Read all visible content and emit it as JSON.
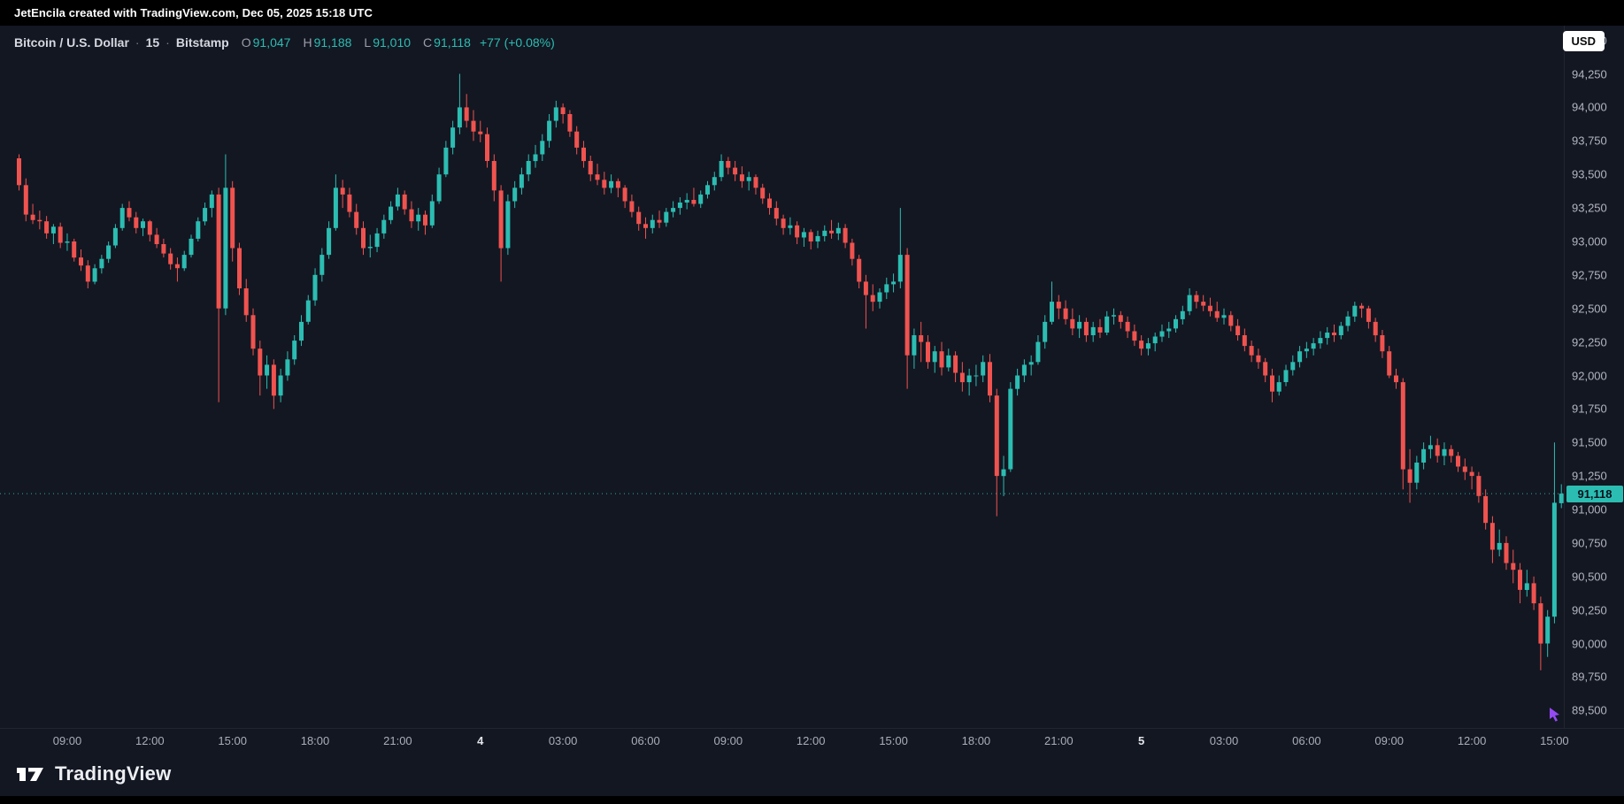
{
  "topbar": {
    "attribution": "JetEncila created with TradingView.com, Dec 05, 2025 15:18 UTC"
  },
  "legend": {
    "symbol": "Bitcoin / U.S. Dollar",
    "separator": "·",
    "interval": "15",
    "exchange": "Bitstamp",
    "open_label": "O",
    "open": "91,047",
    "high_label": "H",
    "high": "91,188",
    "low_label": "L",
    "low": "91,010",
    "close_label": "C",
    "close": "91,118",
    "change": "+77 (+0.08%)"
  },
  "currency_button": "USD",
  "footer": {
    "brand": "TradingView"
  },
  "colors": {
    "up": "#2cbdb2",
    "down": "#f0534f",
    "background": "#131722",
    "topbar": "#000000",
    "axis_text": "#b2b5be",
    "badge_bg": "#2cbdb2",
    "badge_text": "#06121d",
    "cursor_purple": "#9b4dff"
  },
  "chart_data": {
    "type": "candlestick",
    "title": "Bitcoin / U.S. Dollar",
    "exchange": "Bitstamp",
    "interval": "15m",
    "timezone": "UTC",
    "start": "2025-12-03 07:15",
    "end": "2025-12-05 15:15",
    "interval_minutes": 15,
    "last": {
      "open": 91047,
      "high": 91188,
      "low": 91010,
      "close": 91118,
      "change": 77,
      "change_pct": 0.08
    },
    "last_price": 91118,
    "price_min": 89370,
    "price_max": 94610,
    "y_ticks": [
      94500,
      94250,
      94000,
      93750,
      93500,
      93250,
      93000,
      92750,
      92500,
      92250,
      92000,
      91750,
      91500,
      91250,
      91000,
      90750,
      90500,
      90250,
      90000,
      89750,
      89500
    ],
    "x_ticks": [
      {
        "label": "09:00",
        "i": 7
      },
      {
        "label": "12:00",
        "i": 19
      },
      {
        "label": "15:00",
        "i": 31
      },
      {
        "label": "18:00",
        "i": 43
      },
      {
        "label": "21:00",
        "i": 55
      },
      {
        "label": "4",
        "i": 67,
        "day": true
      },
      {
        "label": "03:00",
        "i": 79
      },
      {
        "label": "06:00",
        "i": 91
      },
      {
        "label": "09:00",
        "i": 103
      },
      {
        "label": "12:00",
        "i": 115
      },
      {
        "label": "15:00",
        "i": 127
      },
      {
        "label": "18:00",
        "i": 139
      },
      {
        "label": "21:00",
        "i": 151
      },
      {
        "label": "5",
        "i": 163,
        "day": true
      },
      {
        "label": "03:00",
        "i": 175
      },
      {
        "label": "06:00",
        "i": 187
      },
      {
        "label": "09:00",
        "i": 199
      },
      {
        "label": "12:00",
        "i": 211
      },
      {
        "label": "15:00",
        "i": 223
      }
    ],
    "candles": [
      [
        93620,
        93650,
        93380,
        93420
      ],
      [
        93420,
        93470,
        93150,
        93200
      ],
      [
        93200,
        93280,
        93130,
        93160
      ],
      [
        93160,
        93230,
        93090,
        93150
      ],
      [
        93150,
        93190,
        93020,
        93060
      ],
      [
        93060,
        93130,
        92980,
        93110
      ],
      [
        93110,
        93140,
        92950,
        92990
      ],
      [
        92990,
        93060,
        92930,
        93000
      ],
      [
        93000,
        93020,
        92850,
        92880
      ],
      [
        92880,
        92940,
        92780,
        92820
      ],
      [
        92820,
        92860,
        92650,
        92700
      ],
      [
        92700,
        92830,
        92680,
        92800
      ],
      [
        92800,
        92900,
        92760,
        92870
      ],
      [
        92870,
        93000,
        92840,
        92970
      ],
      [
        92970,
        93130,
        92950,
        93100
      ],
      [
        93100,
        93280,
        93080,
        93250
      ],
      [
        93250,
        93300,
        93150,
        93180
      ],
      [
        93180,
        93220,
        93060,
        93100
      ],
      [
        93100,
        93170,
        93040,
        93150
      ],
      [
        93150,
        93160,
        93000,
        93050
      ],
      [
        93050,
        93100,
        92950,
        92980
      ],
      [
        92980,
        93020,
        92880,
        92910
      ],
      [
        92910,
        92950,
        92790,
        92830
      ],
      [
        92830,
        92880,
        92700,
        92800
      ],
      [
        92800,
        92930,
        92780,
        92900
      ],
      [
        92900,
        93050,
        92880,
        93020
      ],
      [
        93020,
        93180,
        93000,
        93150
      ],
      [
        93150,
        93290,
        93120,
        93250
      ],
      [
        93250,
        93380,
        93180,
        93350
      ],
      [
        93350,
        93400,
        91800,
        92500
      ],
      [
        92500,
        93650,
        92450,
        93400
      ],
      [
        93400,
        93450,
        92850,
        92950
      ],
      [
        92950,
        92990,
        92600,
        92650
      ],
      [
        92650,
        92720,
        92400,
        92450
      ],
      [
        92450,
        92500,
        92150,
        92200
      ],
      [
        92200,
        92260,
        91850,
        92000
      ],
      [
        92000,
        92150,
        91900,
        92080
      ],
      [
        92080,
        92120,
        91750,
        91850
      ],
      [
        91850,
        92050,
        91800,
        92000
      ],
      [
        92000,
        92180,
        91960,
        92120
      ],
      [
        92120,
        92300,
        92080,
        92260
      ],
      [
        92260,
        92450,
        92220,
        92400
      ],
      [
        92400,
        92600,
        92380,
        92560
      ],
      [
        92560,
        92800,
        92520,
        92750
      ],
      [
        92750,
        92950,
        92700,
        92900
      ],
      [
        92900,
        93150,
        92870,
        93100
      ],
      [
        93100,
        93500,
        93080,
        93400
      ],
      [
        93400,
        93460,
        93250,
        93350
      ],
      [
        93350,
        93400,
        93180,
        93220
      ],
      [
        93220,
        93280,
        93050,
        93100
      ],
      [
        93100,
        93150,
        92900,
        92950
      ],
      [
        92950,
        93050,
        92880,
        92960
      ],
      [
        92960,
        93100,
        92920,
        93060
      ],
      [
        93060,
        93200,
        93020,
        93160
      ],
      [
        93160,
        93300,
        93130,
        93260
      ],
      [
        93260,
        93400,
        93230,
        93350
      ],
      [
        93350,
        93380,
        93200,
        93240
      ],
      [
        93240,
        93300,
        93100,
        93150
      ],
      [
        93150,
        93250,
        93080,
        93200
      ],
      [
        93200,
        93230,
        93050,
        93120
      ],
      [
        93120,
        93350,
        93100,
        93300
      ],
      [
        93300,
        93550,
        93280,
        93500
      ],
      [
        93500,
        93750,
        93480,
        93700
      ],
      [
        93700,
        93900,
        93650,
        93850
      ],
      [
        93850,
        94250,
        93800,
        94000
      ],
      [
        94000,
        94100,
        93850,
        93900
      ],
      [
        93900,
        93980,
        93750,
        93820
      ],
      [
        93820,
        93900,
        93740,
        93800
      ],
      [
        93800,
        93850,
        93550,
        93600
      ],
      [
        93600,
        93650,
        93300,
        93380
      ],
      [
        93380,
        93420,
        92700,
        92950
      ],
      [
        92950,
        93350,
        92900,
        93300
      ],
      [
        93300,
        93450,
        93250,
        93400
      ],
      [
        93400,
        93550,
        93350,
        93500
      ],
      [
        93500,
        93650,
        93450,
        93600
      ],
      [
        93600,
        93720,
        93550,
        93650
      ],
      [
        93650,
        93800,
        93600,
        93750
      ],
      [
        93750,
        93950,
        93700,
        93900
      ],
      [
        93900,
        94050,
        93850,
        94000
      ],
      [
        94000,
        94030,
        93880,
        93950
      ],
      [
        93950,
        93980,
        93780,
        93820
      ],
      [
        93820,
        93860,
        93650,
        93700
      ],
      [
        93700,
        93750,
        93550,
        93600
      ],
      [
        93600,
        93640,
        93450,
        93500
      ],
      [
        93500,
        93580,
        93420,
        93460
      ],
      [
        93460,
        93520,
        93350,
        93400
      ],
      [
        93400,
        93500,
        93360,
        93450
      ],
      [
        93450,
        93470,
        93330,
        93400
      ],
      [
        93400,
        93420,
        93250,
        93300
      ],
      [
        93300,
        93350,
        93180,
        93220
      ],
      [
        93220,
        93260,
        93080,
        93130
      ],
      [
        93130,
        93180,
        93020,
        93100
      ],
      [
        93100,
        93200,
        93060,
        93160
      ],
      [
        93160,
        93230,
        93100,
        93140
      ],
      [
        93140,
        93250,
        93110,
        93220
      ],
      [
        93220,
        93300,
        93180,
        93250
      ],
      [
        93250,
        93330,
        93200,
        93290
      ],
      [
        93290,
        93360,
        93240,
        93310
      ],
      [
        93310,
        93400,
        93260,
        93280
      ],
      [
        93280,
        93380,
        93250,
        93350
      ],
      [
        93350,
        93450,
        93320,
        93420
      ],
      [
        93420,
        93520,
        93380,
        93480
      ],
      [
        93480,
        93650,
        93450,
        93600
      ],
      [
        93600,
        93630,
        93500,
        93550
      ],
      [
        93550,
        93600,
        93450,
        93500
      ],
      [
        93500,
        93560,
        93400,
        93450
      ],
      [
        93450,
        93520,
        93380,
        93480
      ],
      [
        93480,
        93500,
        93350,
        93400
      ],
      [
        93400,
        93430,
        93280,
        93320
      ],
      [
        93320,
        93360,
        93200,
        93250
      ],
      [
        93250,
        93300,
        93120,
        93170
      ],
      [
        93170,
        93200,
        93050,
        93100
      ],
      [
        93100,
        93180,
        93050,
        93120
      ],
      [
        93120,
        93150,
        92980,
        93030
      ],
      [
        93030,
        93100,
        92960,
        93070
      ],
      [
        93070,
        93090,
        92940,
        93000
      ],
      [
        93000,
        93080,
        92950,
        93040
      ],
      [
        93040,
        93120,
        93000,
        93080
      ],
      [
        93080,
        93160,
        93020,
        93060
      ],
      [
        93060,
        93140,
        93010,
        93100
      ],
      [
        93100,
        93130,
        92950,
        92990
      ],
      [
        92990,
        93020,
        92820,
        92870
      ],
      [
        92870,
        92900,
        92650,
        92700
      ],
      [
        92700,
        92750,
        92350,
        92600
      ],
      [
        92600,
        92680,
        92480,
        92550
      ],
      [
        92550,
        92650,
        92500,
        92620
      ],
      [
        92620,
        92730,
        92570,
        92680
      ],
      [
        92680,
        92760,
        92620,
        92700
      ],
      [
        92700,
        93250,
        92650,
        92900
      ],
      [
        92900,
        92950,
        91900,
        92150
      ],
      [
        92150,
        92350,
        92050,
        92300
      ],
      [
        92300,
        92400,
        92100,
        92250
      ],
      [
        92250,
        92300,
        92050,
        92100
      ],
      [
        92100,
        92220,
        92020,
        92180
      ],
      [
        92180,
        92250,
        92000,
        92060
      ],
      [
        92060,
        92200,
        92030,
        92150
      ],
      [
        92150,
        92180,
        91950,
        92020
      ],
      [
        92020,
        92100,
        91880,
        91950
      ],
      [
        91950,
        92050,
        91850,
        92000
      ],
      [
        92000,
        92080,
        91920,
        92000
      ],
      [
        92000,
        92150,
        91950,
        92100
      ],
      [
        92100,
        92160,
        91800,
        91850
      ],
      [
        91850,
        91900,
        90950,
        91250
      ],
      [
        91250,
        91400,
        91100,
        91300
      ],
      [
        91300,
        91950,
        91280,
        91900
      ],
      [
        91900,
        92050,
        91850,
        92000
      ],
      [
        92000,
        92120,
        91950,
        92080
      ],
      [
        92080,
        92150,
        92000,
        92100
      ],
      [
        92100,
        92300,
        92080,
        92250
      ],
      [
        92250,
        92450,
        92200,
        92400
      ],
      [
        92400,
        92700,
        92380,
        92550
      ],
      [
        92550,
        92600,
        92420,
        92500
      ],
      [
        92500,
        92560,
        92380,
        92420
      ],
      [
        92420,
        92500,
        92300,
        92350
      ],
      [
        92350,
        92450,
        92280,
        92400
      ],
      [
        92400,
        92430,
        92250,
        92300
      ],
      [
        92300,
        92400,
        92250,
        92360
      ],
      [
        92360,
        92420,
        92280,
        92320
      ],
      [
        92320,
        92480,
        92300,
        92440
      ],
      [
        92440,
        92500,
        92380,
        92450
      ],
      [
        92450,
        92480,
        92350,
        92400
      ],
      [
        92400,
        92440,
        92280,
        92330
      ],
      [
        92330,
        92380,
        92220,
        92260
      ],
      [
        92260,
        92300,
        92150,
        92200
      ],
      [
        92200,
        92280,
        92150,
        92240
      ],
      [
        92240,
        92320,
        92180,
        92290
      ],
      [
        92290,
        92380,
        92250,
        92330
      ],
      [
        92330,
        92400,
        92280,
        92350
      ],
      [
        92350,
        92450,
        92320,
        92420
      ],
      [
        92420,
        92520,
        92380,
        92480
      ],
      [
        92480,
        92650,
        92450,
        92600
      ],
      [
        92600,
        92630,
        92500,
        92550
      ],
      [
        92550,
        92600,
        92480,
        92520
      ],
      [
        92520,
        92580,
        92440,
        92480
      ],
      [
        92480,
        92550,
        92400,
        92430
      ],
      [
        92430,
        92500,
        92380,
        92450
      ],
      [
        92450,
        92480,
        92330,
        92370
      ],
      [
        92370,
        92420,
        92260,
        92300
      ],
      [
        92300,
        92350,
        92180,
        92220
      ],
      [
        92220,
        92260,
        92100,
        92150
      ],
      [
        92150,
        92200,
        92050,
        92100
      ],
      [
        92100,
        92130,
        91950,
        92000
      ],
      [
        92000,
        92050,
        91800,
        91880
      ],
      [
        91880,
        92000,
        91850,
        91950
      ],
      [
        91950,
        92080,
        91920,
        92040
      ],
      [
        92040,
        92150,
        92000,
        92100
      ],
      [
        92100,
        92220,
        92060,
        92180
      ],
      [
        92180,
        92250,
        92130,
        92200
      ],
      [
        92200,
        92280,
        92150,
        92240
      ],
      [
        92240,
        92330,
        92200,
        92280
      ],
      [
        92280,
        92360,
        92230,
        92320
      ],
      [
        92320,
        92380,
        92250,
        92300
      ],
      [
        92300,
        92400,
        92270,
        92370
      ],
      [
        92370,
        92480,
        92330,
        92440
      ],
      [
        92440,
        92550,
        92400,
        92520
      ],
      [
        92520,
        92540,
        92430,
        92500
      ],
      [
        92500,
        92520,
        92350,
        92400
      ],
      [
        92400,
        92430,
        92250,
        92300
      ],
      [
        92300,
        92340,
        92130,
        92180
      ],
      [
        92180,
        92220,
        91980,
        92000
      ],
      [
        92000,
        92050,
        91900,
        91950
      ],
      [
        91950,
        91980,
        91150,
        91300
      ],
      [
        91300,
        91450,
        91050,
        91200
      ],
      [
        91200,
        91400,
        91150,
        91350
      ],
      [
        91350,
        91500,
        91300,
        91450
      ],
      [
        91450,
        91550,
        91380,
        91480
      ],
      [
        91480,
        91530,
        91350,
        91400
      ],
      [
        91400,
        91500,
        91330,
        91450
      ],
      [
        91450,
        91480,
        91350,
        91400
      ],
      [
        91400,
        91430,
        91280,
        91320
      ],
      [
        91320,
        91380,
        91220,
        91280
      ],
      [
        91280,
        91320,
        91150,
        91250
      ],
      [
        91250,
        91280,
        91050,
        91100
      ],
      [
        91100,
        91150,
        90850,
        90900
      ],
      [
        90900,
        90950,
        90600,
        90700
      ],
      [
        90700,
        90850,
        90650,
        90750
      ],
      [
        90750,
        90800,
        90550,
        90600
      ],
      [
        90600,
        90700,
        90450,
        90550
      ],
      [
        90550,
        90600,
        90300,
        90400
      ],
      [
        90400,
        90550,
        90350,
        90450
      ],
      [
        90450,
        90500,
        90250,
        90300
      ],
      [
        90300,
        90350,
        89800,
        90000
      ],
      [
        90000,
        90250,
        89900,
        90200
      ],
      [
        90200,
        91500,
        90150,
        91050
      ],
      [
        91047,
        91188,
        91010,
        91118
      ]
    ]
  }
}
